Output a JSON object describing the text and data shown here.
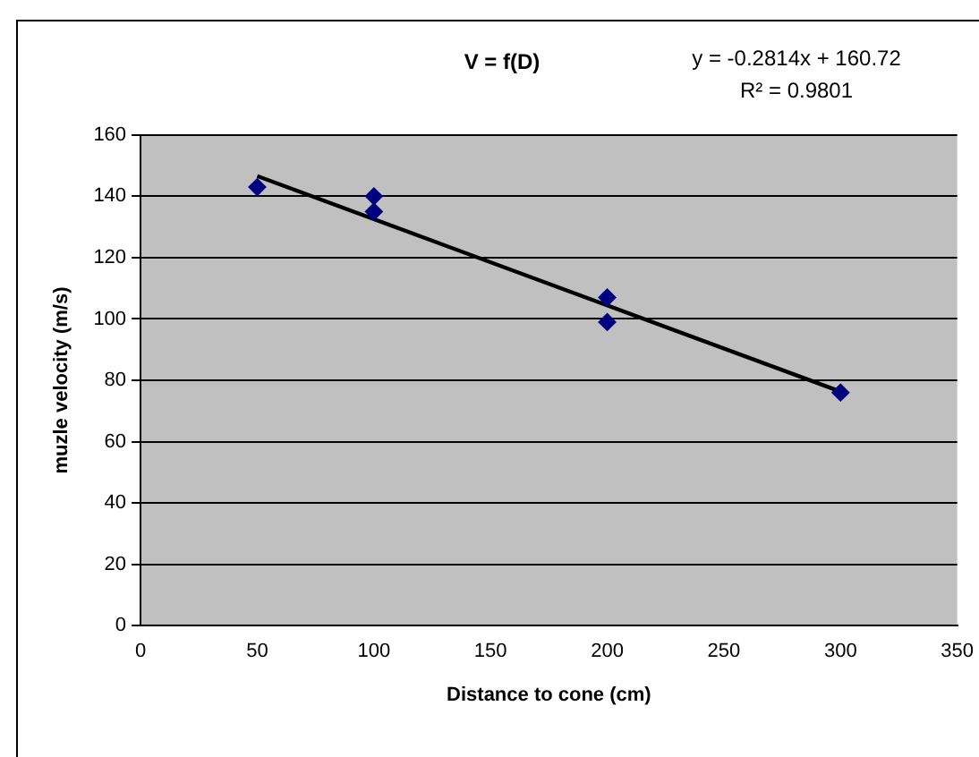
{
  "chart_data": {
    "type": "scatter",
    "title": "V = f(D)",
    "xlabel": "Distance to cone (cm)",
    "ylabel": "muzle velocity (m/s)",
    "annotations": [
      "y = -0.2814x + 160.72",
      "R² = 0.9801"
    ],
    "series": [
      {
        "color": "#000080",
        "marker": "diamond",
        "x": [
          50,
          100,
          100,
          200,
          200,
          300
        ],
        "values": [
          143,
          140,
          135,
          107,
          99,
          76
        ]
      },
      {
        "type": "line",
        "color": "#000000",
        "marker": "none",
        "line_style": "solid",
        "x": [
          50,
          300
        ],
        "values": [
          146.6,
          76.3
        ]
      }
    ],
    "xlim": [
      0,
      350
    ],
    "xticks": [
      0,
      50,
      100,
      150,
      200,
      250,
      300,
      350
    ],
    "ylim": [
      0,
      160
    ],
    "yticks": [
      0,
      20,
      40,
      60,
      80,
      100,
      120,
      140,
      160
    ],
    "grid": "y",
    "legend": false
  }
}
